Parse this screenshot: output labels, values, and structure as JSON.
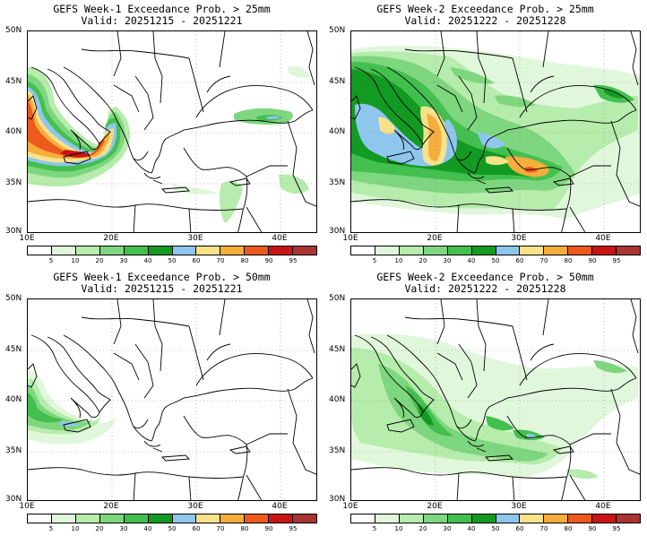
{
  "panels": [
    {
      "title": "GEFS Week-1 Exceedance Prob. > 25mm",
      "valid": "Valid: 20251215 - 20251221"
    },
    {
      "title": "GEFS Week-2 Exceedance Prob. > 25mm",
      "valid": "Valid: 20251222 - 20251228"
    },
    {
      "title": "GEFS Week-1 Exceedance Prob. > 50mm",
      "valid": "Valid: 20251215 - 20251221"
    },
    {
      "title": "GEFS Week-2 Exceedance Prob. > 50mm",
      "valid": "Valid: 20251222 - 20251228"
    }
  ],
  "lat_labels": [
    "50N",
    "45N",
    "40N",
    "35N",
    "30N"
  ],
  "lon_labels": [
    "10E",
    "20E",
    "30E",
    "40E"
  ],
  "colorbar": {
    "colors": [
      "#ffffff",
      "#e1f7dc",
      "#b6ecac",
      "#7ed67e",
      "#43bf4f",
      "#129a22",
      "#8fc6ee",
      "#f7e28a",
      "#f5ae3c",
      "#ec5a1c",
      "#c81414",
      "#a83434"
    ],
    "labels": [
      "5",
      "10",
      "20",
      "30",
      "40",
      "50",
      "60",
      "70",
      "80",
      "90",
      "95"
    ]
  },
  "colors": {
    "green_light": "#b6ecac",
    "green_mid": "#43bf4f",
    "green_dark": "#129a22",
    "blue": "#8fc6ee",
    "yellow": "#f7e28a",
    "orange": "#f5ae3c",
    "red": "#ec5a1c"
  }
}
